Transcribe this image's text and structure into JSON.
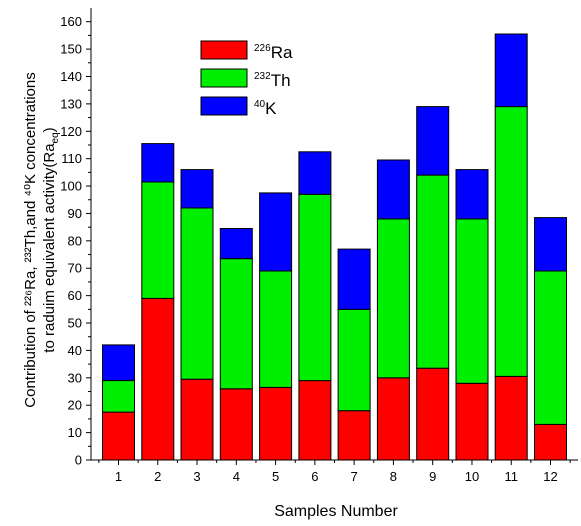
{
  "chart_data": {
    "type": "bar",
    "stacked": true,
    "title": "",
    "xlabel": "Samples Number",
    "ylabel_line1": "Contribution of ²²⁶Ra, ²³²Th,and ⁴⁰K concentrations",
    "ylabel_line2": "to raduim equivalent activity(Ra",
    "ylabel_line2_sub": "eq",
    "ylabel_line2_end": ")",
    "categories": [
      "1",
      "2",
      "3",
      "4",
      "5",
      "6",
      "7",
      "8",
      "9",
      "10",
      "11",
      "12"
    ],
    "ylim": [
      0,
      165
    ],
    "yticks": [
      0,
      10,
      20,
      30,
      40,
      50,
      60,
      70,
      80,
      90,
      100,
      110,
      120,
      130,
      140,
      150,
      160
    ],
    "grid": false,
    "legend_position": "top-left",
    "series": [
      {
        "name": "²²⁶Ra",
        "legend_sup": "226",
        "legend_base": "Ra",
        "color": "#ff0000",
        "values": [
          17.5,
          59,
          29.5,
          26,
          26.5,
          29,
          18,
          30,
          33.5,
          28,
          30.5,
          13
        ]
      },
      {
        "name": "²³²Th",
        "legend_sup": "232",
        "legend_base": "Th",
        "color": "#00ee00",
        "values": [
          11.5,
          42.5,
          62.5,
          47.5,
          42.5,
          68,
          37,
          58,
          70.5,
          60,
          98.5,
          56
        ]
      },
      {
        "name": "⁴⁰K",
        "legend_sup": "40",
        "legend_base": "K",
        "color": "#0000ff",
        "values": [
          13,
          14,
          14,
          11,
          28.5,
          15.5,
          22,
          21.5,
          25,
          18,
          26.5,
          19.5
        ]
      }
    ]
  }
}
